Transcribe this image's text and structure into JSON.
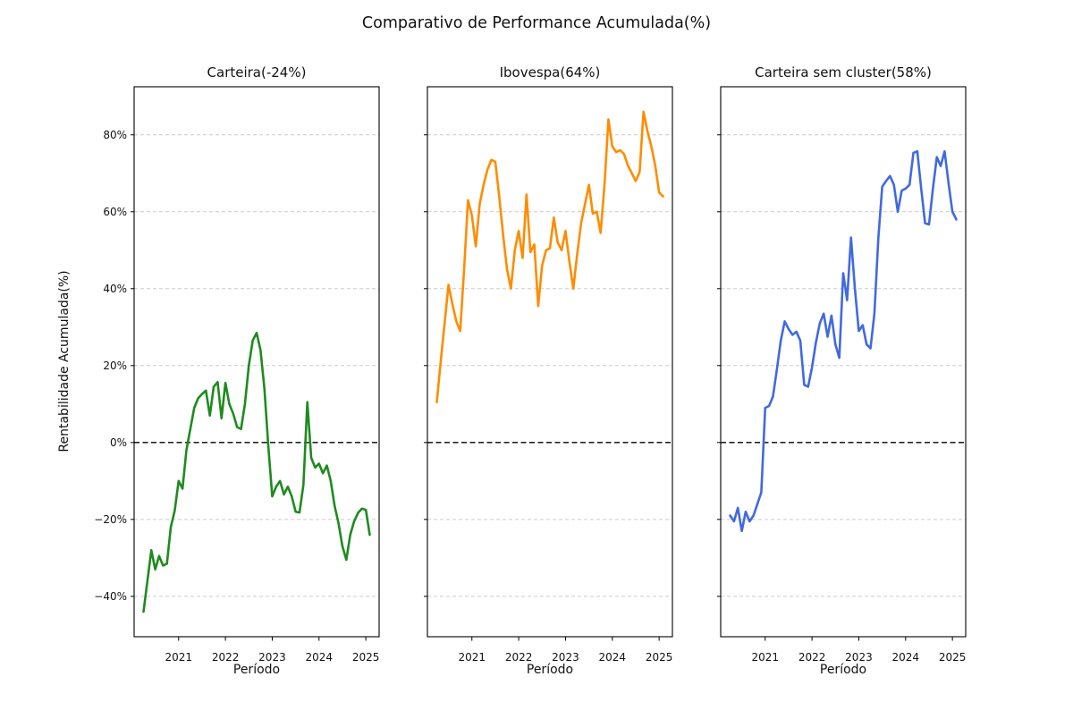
{
  "figure": {
    "suptitle": "Comparativo de Performance Acumulada(%)",
    "ylabel": "Rentabilidade Acumulada(%)",
    "xlabel": "Período"
  },
  "axes": {
    "ylim": [
      -50.5,
      92.5
    ],
    "y_ticks": [
      {
        "value": 80,
        "label": "80%"
      },
      {
        "value": 60,
        "label": "60%"
      },
      {
        "value": 40,
        "label": "40%"
      },
      {
        "value": 20,
        "label": "20%"
      },
      {
        "value": 0,
        "label": "0%"
      },
      {
        "value": -20,
        "label": "−20%"
      },
      {
        "value": -40,
        "label": "−40%"
      }
    ],
    "x_tick_years": [
      "2021",
      "2022",
      "2023",
      "2024",
      "2025"
    ],
    "grid": "horizontal-dashed",
    "zero_line": true
  },
  "chart_data": [
    {
      "type": "line",
      "key": "carteira",
      "title": "Carteira(-24%)",
      "final_pct": -24,
      "color": "#1e8b1e",
      "x_start": "2020-04",
      "x_end": "2025-02",
      "x_freq": "monthly",
      "values": [
        -44,
        -36,
        -28,
        -33,
        -29.5,
        -32,
        -31.5,
        -22,
        -17.7,
        -10,
        -12,
        -2,
        3.5,
        9,
        11.5,
        12.6,
        13.5,
        7,
        14.5,
        15.7,
        6.3,
        15.5,
        10,
        7.5,
        4,
        3.5,
        10,
        20,
        26.5,
        28.5,
        24,
        14,
        -1,
        -14,
        -11.5,
        -10,
        -13.5,
        -11.5,
        -14,
        -18,
        -18.2,
        -11,
        10.5,
        -4,
        -6.5,
        -5.5,
        -8,
        -6,
        -10,
        -16.5,
        -21,
        -27,
        -30.5,
        -24,
        -20.5,
        -18.3,
        -17.2,
        -17.5,
        -24
      ]
    },
    {
      "type": "line",
      "key": "ibovespa",
      "title": "Ibovespa(64%)",
      "final_pct": 64,
      "color": "#ff8c00",
      "x_start": "2020-04",
      "x_end": "2025-02",
      "x_freq": "monthly",
      "values": [
        10.5,
        21,
        31,
        41,
        36,
        31.5,
        29,
        45,
        63,
        59,
        51,
        62,
        67,
        71,
        73.5,
        73,
        64,
        54,
        45,
        40,
        50,
        55,
        48,
        64.5,
        49.5,
        51.5,
        35.5,
        46,
        50,
        50.5,
        58.5,
        52,
        50,
        55,
        47,
        40,
        49,
        57,
        62,
        67,
        59.5,
        60,
        54.5,
        67,
        84,
        77,
        75.5,
        76,
        75,
        72,
        70,
        68,
        70.3,
        86,
        81,
        77,
        72,
        65,
        64
      ]
    },
    {
      "type": "line",
      "key": "carteira_sem_cluster",
      "title": "Carteira sem cluster(58%)",
      "final_pct": 58,
      "color": "#4169e1",
      "x_start": "2020-04",
      "x_end": "2025-02",
      "x_freq": "monthly",
      "values": [
        -19,
        -20.5,
        -17,
        -23,
        -18,
        -20.5,
        -19,
        -16,
        -13,
        9,
        9.5,
        12,
        19,
        26.5,
        31.5,
        29.5,
        28,
        28.8,
        26.5,
        15,
        14.5,
        19.5,
        26,
        31,
        33.5,
        27.5,
        33,
        25.5,
        22,
        44,
        37,
        53.3,
        40,
        29,
        30.5,
        25.5,
        24.5,
        33.5,
        53,
        66.5,
        68,
        69.3,
        67,
        60,
        65.5,
        66,
        67,
        75.3,
        75.7,
        66,
        57,
        56.7,
        66,
        74.2,
        71.9,
        75.7,
        67.5,
        60,
        58
      ]
    }
  ]
}
